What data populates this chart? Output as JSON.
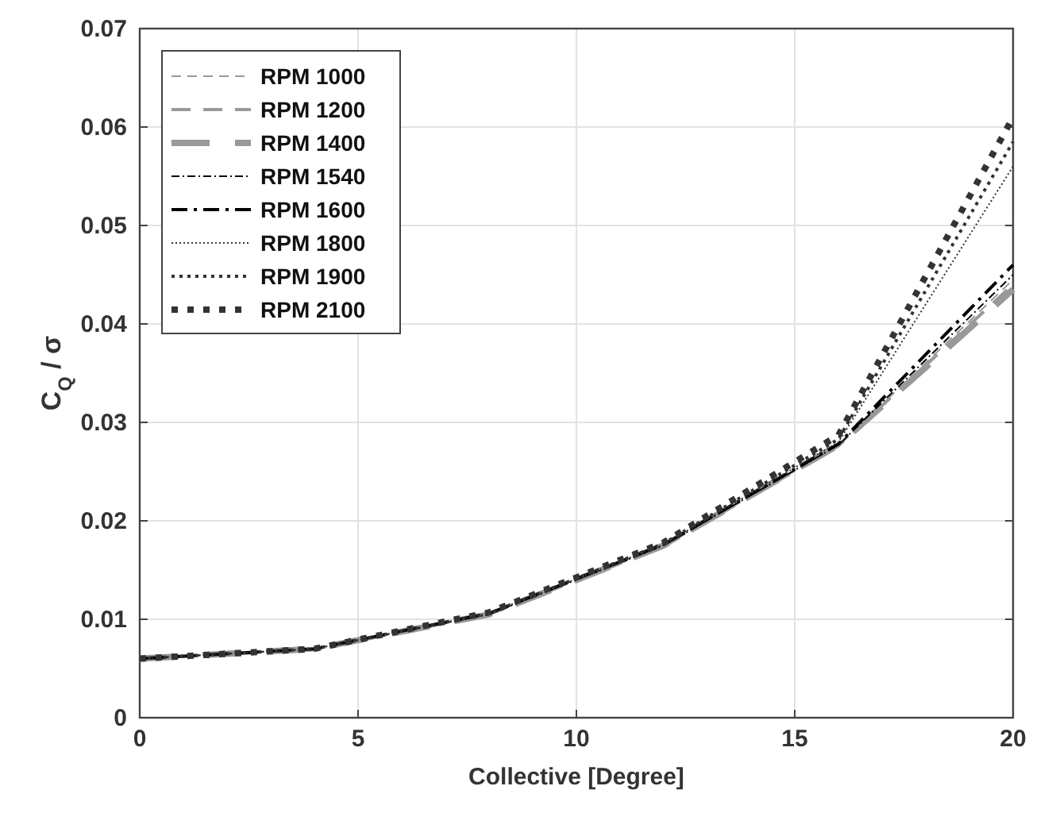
{
  "chart_data": {
    "type": "line",
    "xlabel": "Collective [Degree]",
    "ylabel": "C$_{Q}$ / σ",
    "x": [
      0,
      4,
      8,
      12,
      16,
      20
    ],
    "xlim": [
      0,
      20
    ],
    "xticks": [
      0,
      5,
      10,
      15,
      20
    ],
    "ylim": [
      0,
      0.07
    ],
    "yticks": [
      0,
      0.01,
      0.02,
      0.03,
      0.04,
      0.05,
      0.06,
      0.07
    ],
    "grid": true,
    "legend": "top left",
    "marker": "none",
    "series": [
      {
        "name": "RPM 1000",
        "color": "#999999",
        "line_style": "dashed",
        "values": [
          0.006,
          0.0069,
          0.0105,
          0.0174,
          0.0276,
          0.0445
        ]
      },
      {
        "name": "RPM 1200",
        "color": "#999999",
        "line_style": "dashed",
        "values": [
          0.006,
          0.0069,
          0.0105,
          0.0174,
          0.0276,
          0.044
        ]
      },
      {
        "name": "RPM 1400",
        "color": "#999999",
        "line_style": "dashed",
        "values": [
          0.006,
          0.007,
          0.0105,
          0.0175,
          0.0277,
          0.0435
        ]
      },
      {
        "name": "RPM 1540",
        "color": "#000000",
        "line_style": "dashdot",
        "values": [
          0.006,
          0.007,
          0.0105,
          0.0175,
          0.0277,
          0.045
        ]
      },
      {
        "name": "RPM 1600",
        "color": "#000000",
        "line_style": "dashdot",
        "values": [
          0.006,
          0.007,
          0.0106,
          0.0176,
          0.0278,
          0.046
        ]
      },
      {
        "name": "RPM 1800",
        "color": "#333333",
        "line_style": "dotted",
        "values": [
          0.006,
          0.007,
          0.0106,
          0.0176,
          0.028,
          0.056
        ]
      },
      {
        "name": "RPM 1900",
        "color": "#333333",
        "line_style": "dotted",
        "values": [
          0.006,
          0.007,
          0.0106,
          0.0177,
          0.0283,
          0.0585
        ]
      },
      {
        "name": "RPM 2100",
        "color": "#333333",
        "line_style": "dotted",
        "values": [
          0.006,
          0.007,
          0.0107,
          0.0178,
          0.0287,
          0.061
        ]
      }
    ]
  }
}
